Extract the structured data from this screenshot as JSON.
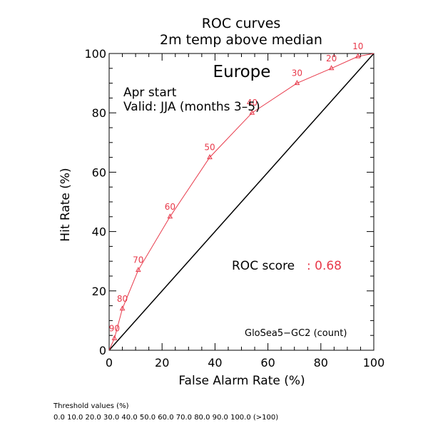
{
  "chart_data": {
    "type": "line",
    "title": "ROC curves",
    "subtitle": "2m temp above median",
    "region": "Europe",
    "start_label": "Apr start",
    "valid_label": "Valid: JJA (months 3–5)",
    "xlabel": "False Alarm Rate (%)",
    "ylabel": "Hit Rate (%)",
    "xlim": [
      0,
      100
    ],
    "ylim": [
      0,
      100
    ],
    "x_ticks": [
      "0",
      "20",
      "40",
      "60",
      "80",
      "100"
    ],
    "y_ticks": [
      "0",
      "20",
      "40",
      "60",
      "80",
      "100"
    ],
    "series": [
      {
        "color": "#e8394a",
        "x": [
          0,
          2,
          5,
          11,
          23,
          38,
          54,
          71,
          84,
          94,
          100
        ],
        "y": [
          0,
          4,
          14,
          27,
          45,
          65,
          80,
          90,
          95,
          99,
          100
        ],
        "point_labels": [
          "",
          "90",
          "80",
          "70",
          "60",
          "50",
          "40",
          "30",
          "20",
          "10",
          ""
        ]
      }
    ],
    "diagonal_color": "#000000",
    "roc_score_label": "ROC score",
    "roc_score_value": ": 0.68",
    "model_label": "GloSea5−GC2 (count)"
  },
  "footer": {
    "threshold_title": "Threshold values (%)",
    "threshold_values": "0.0 10.0 20.0 30.0 40.0 50.0 60.0 70.0 80.0 90.0 100.0 (>100)"
  }
}
